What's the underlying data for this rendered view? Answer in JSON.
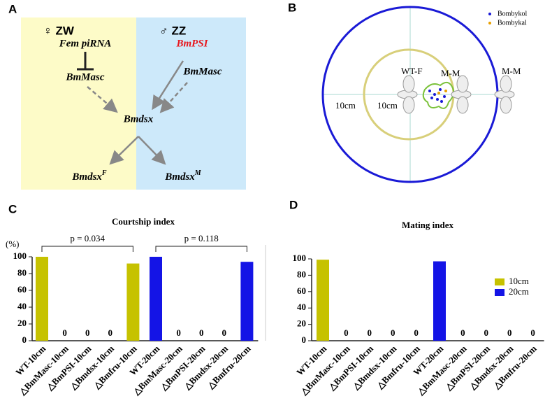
{
  "panel_a": {
    "label": "A",
    "female": "♀ ZW",
    "male": "♂ ZZ",
    "fem_pirna": "Fem piRNA",
    "bmmasc_f": "BmMasc",
    "bmpsi": "BmPSI",
    "bmmasc_m": "BmMasc",
    "bmdsx": "Bmdsx",
    "bmdsx_f": {
      "text": "Bmdsx",
      "sup": "F"
    },
    "bmdsx_m": {
      "text": "Bmdsx",
      "sup": "M"
    }
  },
  "panel_b": {
    "label": "B",
    "legend": [
      "Bombykol",
      "Bombykal"
    ],
    "wt_f": "WT-F",
    "m_m_inner": "M-M",
    "m_m_outer": "M-M",
    "dist_outer": "10cm",
    "dist_inner": "10cm"
  },
  "chart_data": [
    {
      "type": "bar",
      "panel": "C",
      "title": "Courtship index",
      "y_unit": "(%)",
      "categories": [
        "WT-10cm",
        "△BmMasc-10cm",
        "△BmPSI-10cm",
        "△Bmdsx-10cm",
        "△Bmfru-10cm",
        "WT-20cm",
        "△BmMasc-20cm",
        "△BmPSI-20cm",
        "△Bmdsx-20cm",
        "△Bmfru-20cm"
      ],
      "values": [
        100,
        0,
        0,
        0,
        92,
        100,
        0,
        0,
        0,
        94
      ],
      "colors": [
        "#c6c200",
        "#c6c200",
        "#c6c200",
        "#c6c200",
        "#c6c200",
        "#1414e6",
        "#1414e6",
        "#1414e6",
        "#1414e6",
        "#1414e6"
      ],
      "ylim": [
        0,
        100
      ],
      "yticks": [
        0,
        20,
        40,
        60,
        80,
        100
      ],
      "annotations": [
        "p = 0.034",
        "p = 0.118"
      ]
    },
    {
      "type": "bar",
      "panel": "D",
      "title": "Mating index",
      "categories": [
        "WT-10cm",
        "△BmMasc-10cm",
        "△BmPSI-10cm",
        "△Bmdsx-10cm",
        "△Bmfru-10cm",
        "WT-20cm",
        "△BmMasc-20cm",
        "△BmPSI-20cm",
        "△Bmdsx-20cm",
        "△Bmfru-20cm"
      ],
      "series": [
        {
          "name": "10cm",
          "color": "#c6c200",
          "values": [
            99,
            0,
            0,
            0,
            0,
            null,
            null,
            null,
            null,
            null
          ]
        },
        {
          "name": "20cm",
          "color": "#1414e6",
          "values": [
            null,
            null,
            null,
            null,
            null,
            97,
            0,
            0,
            0,
            0
          ]
        }
      ],
      "ylim": [
        0,
        100
      ],
      "yticks": [
        0,
        20,
        40,
        60,
        80,
        100
      ],
      "legend": "upper right"
    }
  ]
}
